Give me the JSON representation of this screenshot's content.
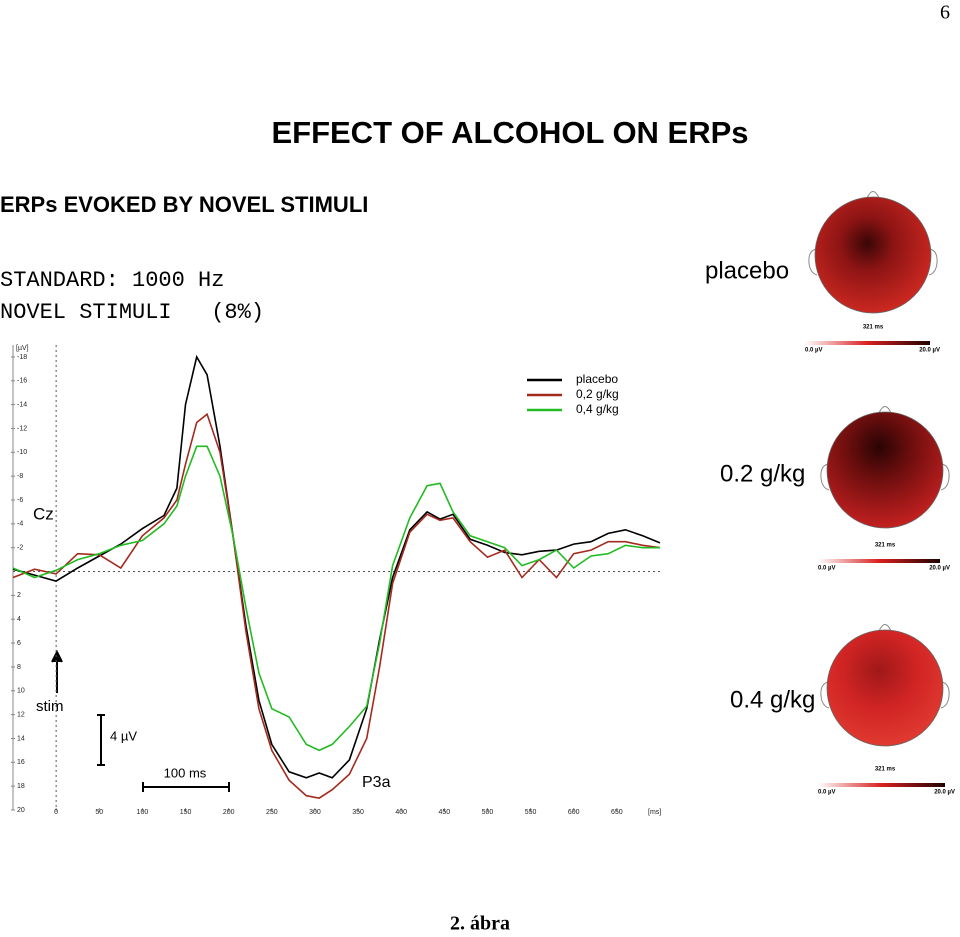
{
  "page": {
    "number": "6",
    "title": "EFFECT OF ALCOHOL ON ERPs",
    "subtitle": "ERPs EVOKED BY NOVEL STIMULI",
    "stimulus_lines": [
      "STANDARD: 1000 Hz",
      "NOVEL STIMULI   (8%)"
    ],
    "caption": "2. ábra"
  },
  "chart_data": {
    "type": "line",
    "y_inverted": true,
    "y_unit": "[µV]",
    "x_unit": "[ms]",
    "annotations": {
      "electrode": "Cz",
      "stim": "stim",
      "amplitude_scale": "4 µV",
      "time_scale": "100 ms",
      "component": "P3a"
    },
    "x": [
      -50,
      -25,
      0,
      25,
      50,
      75,
      100,
      125,
      140,
      150,
      163,
      175,
      190,
      205,
      220,
      235,
      250,
      270,
      290,
      305,
      320,
      340,
      360,
      375,
      390,
      410,
      430,
      445,
      460,
      480,
      500,
      520,
      540,
      560,
      580,
      600,
      620,
      640,
      660,
      680,
      700
    ],
    "series": [
      {
        "name": "placebo",
        "color": "#000000",
        "values": [
          -0.2,
          0.3,
          0.8,
          -0.3,
          -1.3,
          -2.3,
          -3.6,
          -4.7,
          -7,
          -14,
          -18,
          -16.5,
          -10.5,
          -3,
          4.5,
          10.8,
          14.5,
          16.8,
          17.3,
          16.9,
          17.3,
          15.8,
          11.5,
          5.7,
          0.5,
          -3.5,
          -5,
          -4.4,
          -4.8,
          -2.7,
          -2.2,
          -1.6,
          -1.4,
          -1.7,
          -1.8,
          -2.3,
          -2.5,
          -3.2,
          -3.5,
          -3,
          -2.4
        ]
      },
      {
        "name": "0,2 g/kg",
        "color": "#a52a1e",
        "values": [
          0.5,
          -0.2,
          0.2,
          -1.5,
          -1.4,
          -0.3,
          -3,
          -4.5,
          -6,
          -9,
          -12.5,
          -13.2,
          -10,
          -3,
          5,
          11.5,
          15,
          17.5,
          18.8,
          19,
          18.3,
          17,
          14,
          8,
          1,
          -3.3,
          -4.8,
          -4.3,
          -4.5,
          -2.5,
          -1.2,
          -1.8,
          0.5,
          -1,
          0.5,
          -1.5,
          -1.8,
          -2.5,
          -2.5,
          -2.2,
          -2
        ]
      },
      {
        "name": "0,4 g/kg",
        "color": "#22bb22",
        "values": [
          -0.3,
          0.5,
          -0.1,
          -1,
          -1.5,
          -2.2,
          -2.6,
          -4,
          -5.5,
          -8,
          -10.5,
          -10.5,
          -8,
          -3,
          3,
          8.5,
          11.5,
          12.2,
          14.5,
          15,
          14.5,
          13,
          11.3,
          6,
          -0.5,
          -4.5,
          -7.2,
          -7.4,
          -5,
          -3,
          -2.5,
          -2,
          -0.5,
          -1,
          -1.8,
          -0.3,
          -1.3,
          -1.5,
          -2.2,
          -2,
          -2
        ]
      }
    ],
    "xlim": [
      -50,
      700
    ],
    "xticks": [
      0,
      50,
      100,
      150,
      200,
      250,
      300,
      350,
      400,
      450,
      500,
      550,
      600,
      650
    ],
    "ylim": [
      -19,
      20
    ],
    "yticks": [
      -18,
      -16,
      -14,
      -12,
      -10,
      -8,
      -6,
      -4,
      -2,
      2,
      4,
      6,
      8,
      10,
      12,
      14,
      16,
      18,
      20
    ]
  },
  "topomaps": [
    {
      "label": "placebo",
      "time": "321 ms",
      "scale_min": "0.0 µV",
      "scale_max": "20.0 µV"
    },
    {
      "label": "0.2 g/kg",
      "time": "321 ms",
      "scale_min": "0.0 µV",
      "scale_max": "20.0 µV"
    },
    {
      "label": "0.4 g/kg",
      "time": "321 ms",
      "scale_min": "0.0 µV",
      "scale_max": "20.0 µV"
    }
  ]
}
